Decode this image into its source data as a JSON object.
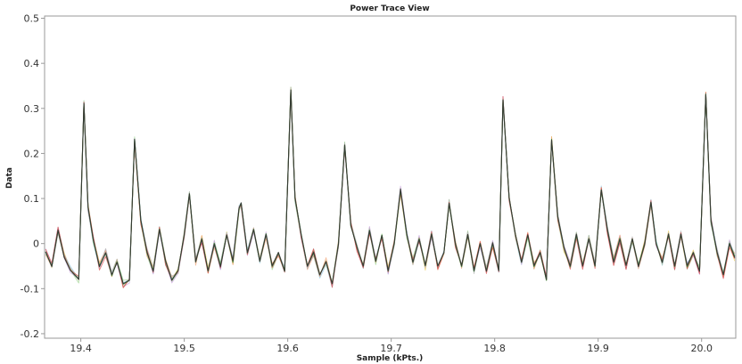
{
  "chart_data": {
    "type": "line",
    "title": "Power Trace View",
    "xlabel": "Sample (kPts.)",
    "ylabel": "Data",
    "xlim": [
      19.365,
      20.033
    ],
    "ylim": [
      -0.21,
      0.505
    ],
    "xticks": [
      "19.4",
      "19.5",
      "19.6",
      "19.7",
      "19.8",
      "19.9",
      "20.0"
    ],
    "yticks": [
      "-0.2",
      "-0.1",
      "0",
      "0.1",
      "0.2",
      "0.3",
      "0.4",
      "0.5"
    ],
    "grid": false,
    "legend": "none",
    "series_colors": [
      "#e8c94a",
      "#8fc7e0",
      "#9ad18b",
      "#c9a0dc",
      "#f0a070",
      "#b0b0b0",
      "#d84040",
      "#3a8a3a",
      "#333333"
    ],
    "x": [
      19.366,
      19.372,
      19.378,
      19.384,
      19.39,
      19.398,
      19.403,
      19.407,
      19.412,
      19.418,
      19.424,
      19.43,
      19.435,
      19.441,
      19.447,
      19.452,
      19.458,
      19.464,
      19.47,
      19.476,
      19.482,
      19.488,
      19.494,
      19.5,
      19.505,
      19.511,
      19.517,
      19.523,
      19.529,
      19.535,
      19.541,
      19.547,
      19.553,
      19.555,
      19.561,
      19.567,
      19.573,
      19.579,
      19.585,
      19.591,
      19.597,
      19.603,
      19.607,
      19.613,
      19.619,
      19.625,
      19.631,
      19.637,
      19.643,
      19.649,
      19.655,
      19.661,
      19.667,
      19.673,
      19.679,
      19.685,
      19.691,
      19.697,
      19.703,
      19.709,
      19.715,
      19.721,
      19.727,
      19.733,
      19.739,
      19.745,
      19.751,
      19.756,
      19.762,
      19.768,
      19.774,
      19.78,
      19.786,
      19.792,
      19.798,
      19.804,
      19.808,
      19.814,
      19.82,
      19.826,
      19.832,
      19.838,
      19.844,
      19.85,
      19.855,
      19.861,
      19.867,
      19.873,
      19.879,
      19.885,
      19.891,
      19.897,
      19.903,
      19.909,
      19.915,
      19.921,
      19.927,
      19.933,
      19.939,
      19.945,
      19.951,
      19.956,
      19.962,
      19.968,
      19.974,
      19.98,
      19.986,
      19.992,
      19.998,
      20.004,
      20.009,
      20.015,
      20.021,
      20.027,
      20.032
    ],
    "series": [
      {
        "values": [
          -0.02,
          -0.05,
          0.03,
          -0.03,
          -0.06,
          -0.08,
          0.31,
          0.08,
          0.01,
          -0.05,
          -0.02,
          -0.07,
          -0.04,
          -0.09,
          -0.08,
          0.23,
          0.05,
          -0.02,
          -0.06,
          0.03,
          -0.04,
          -0.08,
          -0.06,
          0.02,
          0.11,
          -0.04,
          0.01,
          -0.06,
          0.0,
          -0.05,
          0.02,
          -0.04,
          0.08,
          0.09,
          -0.02,
          0.03,
          -0.04,
          0.02,
          -0.05,
          -0.02,
          -0.06,
          0.34,
          0.1,
          0.02,
          -0.05,
          -0.02,
          -0.07,
          -0.04,
          -0.09,
          0.0,
          0.22,
          0.04,
          -0.01,
          -0.05,
          0.03,
          -0.04,
          0.02,
          -0.06,
          0.0,
          0.12,
          0.02,
          -0.04,
          0.01,
          -0.05,
          0.02,
          -0.05,
          -0.02,
          0.09,
          0.0,
          -0.05,
          0.02,
          -0.06,
          0.0,
          -0.06,
          0.0,
          -0.06,
          0.32,
          0.1,
          0.02,
          -0.04,
          0.02,
          -0.05,
          -0.02,
          -0.08,
          0.23,
          0.06,
          -0.01,
          -0.05,
          0.02,
          -0.05,
          0.01,
          -0.05,
          0.12,
          0.03,
          -0.04,
          0.01,
          -0.05,
          0.01,
          -0.05,
          0.0,
          0.09,
          0.0,
          -0.04,
          0.02,
          -0.05,
          0.02,
          -0.05,
          -0.02,
          -0.06,
          0.33,
          0.05,
          -0.02,
          -0.07,
          0.0,
          -0.03
        ]
      }
    ]
  }
}
